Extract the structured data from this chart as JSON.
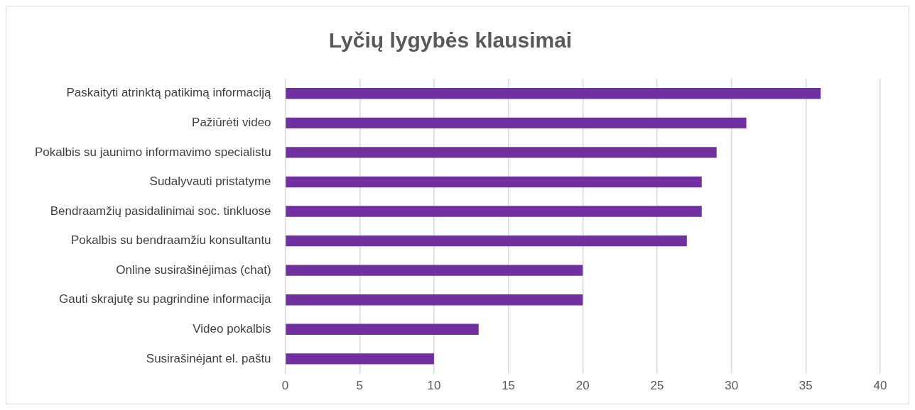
{
  "chart_data": {
    "type": "bar",
    "title": "Lyčių lygybės klausimai",
    "orientation": "horizontal",
    "categories": [
      "Paskaityti atrinktą patikimą informaciją",
      "Pažiūrėti video",
      "Pokalbis su jaunimo informavimo specialistu",
      "Sudalyvauti pristatyme",
      "Bendraamžių pasidalinimai soc. tinkluose",
      "Pokalbis su bendraamžiu konsultantu",
      "Online susirašinėjimas (chat)",
      "Gauti skrajutę su pagrindine informacija",
      "Video pokalbis",
      "Susirašinėjant el. paštu"
    ],
    "values": [
      36,
      31,
      29,
      28,
      28,
      27,
      20,
      20,
      13,
      10
    ],
    "color": "#7030a0",
    "xlim": [
      0,
      40
    ],
    "xticks": [
      0,
      5,
      10,
      15,
      20,
      25,
      30,
      35,
      40
    ],
    "grid": "x",
    "legend": false
  }
}
